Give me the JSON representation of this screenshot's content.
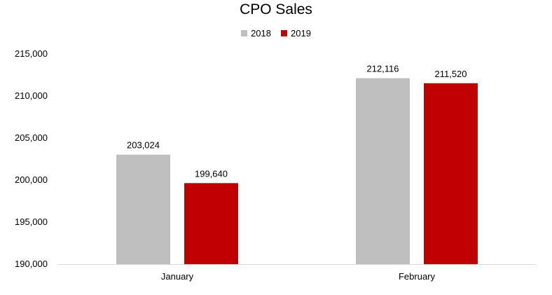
{
  "chart_data": {
    "type": "bar",
    "title": "CPO Sales",
    "categories": [
      "January",
      "February"
    ],
    "series": [
      {
        "name": "2018",
        "color": "#bfbfbf",
        "values": [
          203024,
          212116
        ],
        "labels": [
          "203,024",
          "212,116"
        ]
      },
      {
        "name": "2019",
        "color": "#c00000",
        "values": [
          199640,
          211520
        ],
        "labels": [
          "199,640",
          "211,520"
        ]
      }
    ],
    "ylim": [
      190000,
      215000
    ],
    "yticks": [
      190000,
      195000,
      200000,
      205000,
      210000,
      215000
    ],
    "ytick_labels": [
      "190,000",
      "195,000",
      "200,000",
      "205,000",
      "210,000",
      "215,000"
    ],
    "grid": false,
    "legend_position": "top",
    "xlabel": "",
    "ylabel": ""
  }
}
